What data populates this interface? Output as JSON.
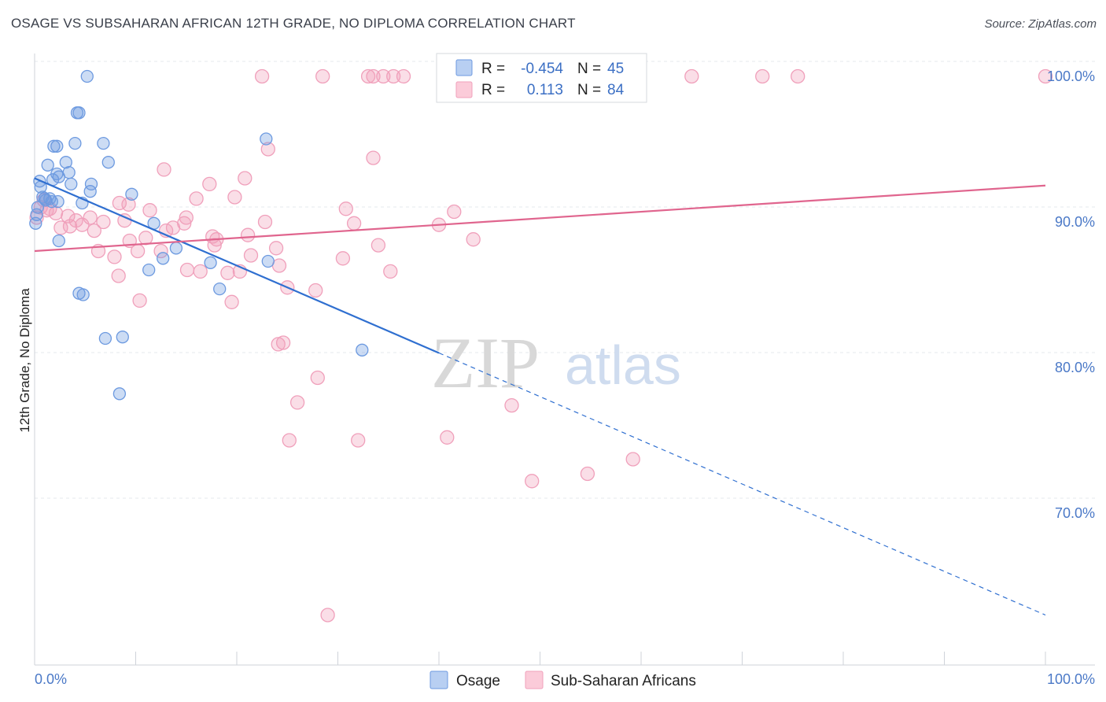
{
  "title": "OSAGE VS SUBSAHARAN AFRICAN 12TH GRADE, NO DIPLOMA CORRELATION CHART",
  "source": "Source: ZipAtlas.com",
  "watermark": {
    "zip": "ZIP",
    "atlas": "atlas"
  },
  "legend": {
    "r_label": "R =",
    "n_label": "N =",
    "series": [
      {
        "r": "-0.454",
        "n": "45"
      },
      {
        "r": "0.113",
        "n": "84"
      }
    ]
  },
  "bottom_legend": [
    "Osage",
    "Sub-Saharan Africans"
  ],
  "chart_data": {
    "type": "scatter",
    "xlabel": "",
    "ylabel": "12th Grade, No Diploma",
    "xlim": [
      0,
      100
    ],
    "ylim": [
      60,
      101.5
    ],
    "x_tick_labels": [
      "0.0%",
      "100.0%"
    ],
    "y_ticks": [
      {
        "value": 100,
        "label": "100.0%"
      },
      {
        "value": 90,
        "label": "90.0%"
      },
      {
        "value": 80,
        "label": "80.0%"
      },
      {
        "value": 70,
        "label": "70.0%"
      }
    ],
    "grid": true,
    "legend_position": "top-center",
    "colors": {
      "osage": "#6d9ae0",
      "subsaharan": "#f0a0bb",
      "osage_line": "#2f6fd0",
      "subsaharan_line": "#e0658e"
    },
    "series": [
      {
        "name": "Osage",
        "points": [
          [
            5.2,
            100.0
          ],
          [
            4.2,
            97.5
          ],
          [
            4.4,
            97.5
          ],
          [
            1.9,
            95.2
          ],
          [
            2.2,
            95.2
          ],
          [
            4.0,
            95.4
          ],
          [
            6.8,
            95.4
          ],
          [
            22.9,
            95.7
          ],
          [
            3.1,
            94.1
          ],
          [
            1.3,
            93.9
          ],
          [
            7.3,
            94.1
          ],
          [
            2.2,
            93.3
          ],
          [
            2.4,
            93.1
          ],
          [
            3.4,
            93.4
          ],
          [
            1.8,
            92.9
          ],
          [
            3.6,
            92.6
          ],
          [
            5.6,
            92.6
          ],
          [
            0.6,
            92.4
          ],
          [
            5.5,
            92.1
          ],
          [
            9.6,
            91.9
          ],
          [
            0.8,
            91.7
          ],
          [
            1.5,
            91.6
          ],
          [
            1.1,
            91.5
          ],
          [
            1.7,
            91.4
          ],
          [
            2.3,
            91.4
          ],
          [
            4.7,
            91.3
          ],
          [
            0.2,
            90.5
          ],
          [
            0.1,
            89.9
          ],
          [
            11.8,
            89.9
          ],
          [
            2.4,
            88.7
          ],
          [
            14.0,
            88.2
          ],
          [
            12.7,
            87.5
          ],
          [
            17.4,
            87.2
          ],
          [
            23.1,
            87.3
          ],
          [
            11.3,
            86.7
          ],
          [
            18.3,
            85.4
          ],
          [
            4.4,
            85.1
          ],
          [
            4.8,
            85.0
          ],
          [
            8.7,
            82.1
          ],
          [
            7.0,
            82.0
          ],
          [
            32.4,
            81.2
          ],
          [
            8.4,
            78.2
          ],
          [
            0.3,
            91.0
          ],
          [
            0.5,
            92.8
          ],
          [
            1.0,
            91.6
          ]
        ]
      },
      {
        "name": "Sub-Saharan Africans",
        "points": [
          [
            22.5,
            100.0
          ],
          [
            28.5,
            100.0
          ],
          [
            33.0,
            100.0
          ],
          [
            33.5,
            100.0
          ],
          [
            34.5,
            100.0
          ],
          [
            35.5,
            100.0
          ],
          [
            36.5,
            100.0
          ],
          [
            46.0,
            100.0
          ],
          [
            65.0,
            100.0
          ],
          [
            72.0,
            100.0
          ],
          [
            75.5,
            100.0
          ],
          [
            100.0,
            100.0
          ],
          [
            33.5,
            94.4
          ],
          [
            23.1,
            95.0
          ],
          [
            12.8,
            93.6
          ],
          [
            20.8,
            93.0
          ],
          [
            17.3,
            92.6
          ],
          [
            16.0,
            91.6
          ],
          [
            19.8,
            91.7
          ],
          [
            8.4,
            91.3
          ],
          [
            9.3,
            91.2
          ],
          [
            0.6,
            91.0
          ],
          [
            1.2,
            90.8
          ],
          [
            2.1,
            90.6
          ],
          [
            0.2,
            90.3
          ],
          [
            3.3,
            90.4
          ],
          [
            5.5,
            90.3
          ],
          [
            11.4,
            90.8
          ],
          [
            15.0,
            90.3
          ],
          [
            30.8,
            90.9
          ],
          [
            41.5,
            90.7
          ],
          [
            8.9,
            90.1
          ],
          [
            4.7,
            89.8
          ],
          [
            3.5,
            89.7
          ],
          [
            2.6,
            89.6
          ],
          [
            14.8,
            89.9
          ],
          [
            22.8,
            90.0
          ],
          [
            31.6,
            89.9
          ],
          [
            40.0,
            89.8
          ],
          [
            5.9,
            89.4
          ],
          [
            13.0,
            89.4
          ],
          [
            17.6,
            89.0
          ],
          [
            18.0,
            88.8
          ],
          [
            21.1,
            89.1
          ],
          [
            11.0,
            88.9
          ],
          [
            9.4,
            88.7
          ],
          [
            17.8,
            88.4
          ],
          [
            34.0,
            88.4
          ],
          [
            43.4,
            88.8
          ],
          [
            6.3,
            88.0
          ],
          [
            10.2,
            88.0
          ],
          [
            12.5,
            88.0
          ],
          [
            7.9,
            87.6
          ],
          [
            21.4,
            87.7
          ],
          [
            30.5,
            87.5
          ],
          [
            24.2,
            87.0
          ],
          [
            15.1,
            86.7
          ],
          [
            16.4,
            86.6
          ],
          [
            19.1,
            86.5
          ],
          [
            20.3,
            86.6
          ],
          [
            35.2,
            86.6
          ],
          [
            8.3,
            86.3
          ],
          [
            25.0,
            85.5
          ],
          [
            27.8,
            85.3
          ],
          [
            10.4,
            84.6
          ],
          [
            19.5,
            84.5
          ],
          [
            24.1,
            81.6
          ],
          [
            24.6,
            81.7
          ],
          [
            28.0,
            79.3
          ],
          [
            26.0,
            77.6
          ],
          [
            47.2,
            77.4
          ],
          [
            25.2,
            75.0
          ],
          [
            32.0,
            75.0
          ],
          [
            40.8,
            75.2
          ],
          [
            59.2,
            73.7
          ],
          [
            49.2,
            72.2
          ],
          [
            54.7,
            72.7
          ],
          [
            29.0,
            63.0
          ],
          [
            0.9,
            91.5
          ],
          [
            1.5,
            90.9
          ],
          [
            4.1,
            90.1
          ],
          [
            6.8,
            90.0
          ],
          [
            13.7,
            89.6
          ],
          [
            23.9,
            88.2
          ]
        ]
      }
    ],
    "trend_lines": [
      {
        "series": "Osage",
        "from": [
          0,
          93.0
        ],
        "solid_to": [
          40,
          81.0
        ],
        "dashed_to": [
          100,
          63.0
        ]
      },
      {
        "series": "Sub-Saharan Africans",
        "from": [
          0,
          88.0
        ],
        "to": [
          100,
          92.5
        ]
      }
    ]
  }
}
